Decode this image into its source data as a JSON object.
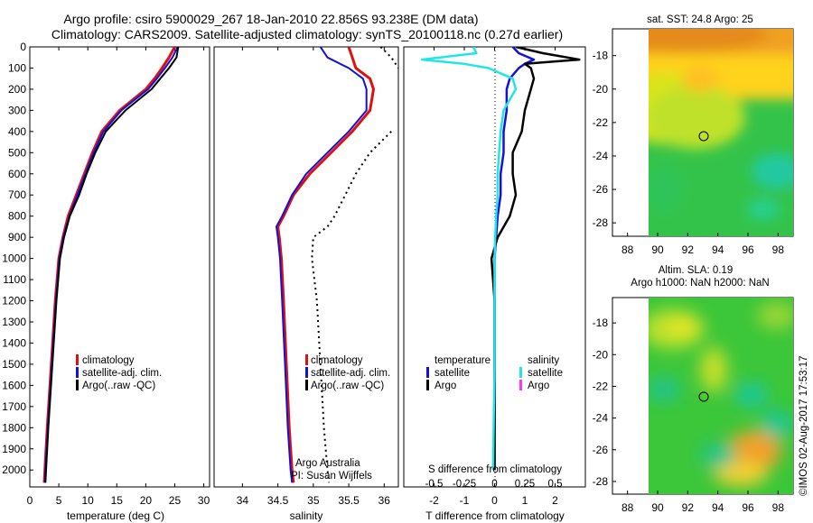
{
  "header": {
    "line1": "Argo profile: csiro 5900029_267 18-Jan-2010 22.856S 93.238E (DM data)",
    "line2": "Climatology: CARS2009. Satellite-adjusted climatology: synTS_20100118.nc (0.27d earlier)"
  },
  "credit": "Argo Australia",
  "pi": "PI: Susan Wijffels",
  "watermark": "©IMOS 02-Aug-2017 17:53:17",
  "colors": {
    "climatology": "#e01010",
    "satellite": "#1010e0",
    "argo": "#000000",
    "satellite_salinity": "#22e5e5",
    "argo_salinity": "#ff33ff",
    "raw": "#000000"
  },
  "legend_tp": [
    "climatology",
    "satellite-adj. clim.",
    "Argo(..raw -QC)"
  ],
  "legend_diff": {
    "temperature_title": "temperature",
    "salinity_title": "salinity",
    "t_sat": "satellite",
    "t_argo": "Argo",
    "s_sat": "satellite",
    "s_argo": "Argo"
  },
  "maps": {
    "sst_title": "sat. SST: 24.8  Argo: 25",
    "sla_title1": "Altim. SLA: 0.19",
    "sla_title2": "Argo h1000: NaN h2000: NaN",
    "lat_ticks": [
      "-18",
      "-20",
      "-22",
      "-24",
      "-26",
      "-28"
    ],
    "lon_ticks": [
      "88",
      "90",
      "92",
      "94",
      "96",
      "98"
    ],
    "marker": {
      "lon": 93.238,
      "lat": -22.856
    }
  },
  "chart_data": [
    {
      "type": "line",
      "panel": "temperature",
      "xlabel": "temperature (deg C)",
      "xlim": [
        0,
        31
      ],
      "ylim": [
        2080,
        0
      ],
      "xticks": [
        "0",
        "5",
        "10",
        "15",
        "20",
        "25",
        "30"
      ],
      "yticks": [
        "0",
        "100",
        "200",
        "300",
        "400",
        "500",
        "600",
        "700",
        "800",
        "900",
        "1000",
        "1100",
        "1200",
        "1300",
        "1400",
        "1500",
        "1600",
        "1700",
        "1800",
        "1900",
        "2000"
      ],
      "depth": [
        0,
        50,
        100,
        150,
        200,
        300,
        400,
        500,
        600,
        700,
        800,
        900,
        1000,
        1200,
        1500,
        1800,
        2000,
        2060
      ],
      "series": [
        {
          "name": "climatology",
          "values": [
            25.0,
            24.0,
            22.8,
            21.5,
            20.0,
            15.5,
            12.4,
            10.8,
            9.4,
            8.0,
            6.6,
            5.7,
            5.0,
            4.4,
            3.7,
            3.0,
            2.6,
            2.5
          ]
        },
        {
          "name": "satellite-adj. clim.",
          "values": [
            25.5,
            24.6,
            23.3,
            21.9,
            20.4,
            15.8,
            12.7,
            11.0,
            9.6,
            8.2,
            6.8,
            5.8,
            5.1,
            4.5,
            3.8,
            3.1,
            2.7,
            2.6
          ]
        },
        {
          "name": "Argo(..raw -QC)",
          "values": [
            25.6,
            25.3,
            24.0,
            22.5,
            21.0,
            16.5,
            13.1,
            11.3,
            9.8,
            8.5,
            6.9,
            5.9,
            5.2,
            4.6,
            3.9,
            3.2,
            2.8,
            2.7
          ]
        }
      ]
    },
    {
      "type": "line",
      "panel": "salinity",
      "xlabel": "salinity",
      "xlim": [
        33.6,
        36.2
      ],
      "ylim": [
        2080,
        0
      ],
      "xticks": [
        "34",
        "34.5",
        "35",
        "35.5",
        "36"
      ],
      "depth": [
        0,
        50,
        100,
        150,
        200,
        300,
        400,
        500,
        600,
        700,
        800,
        850,
        900,
        1000,
        1200,
        1500,
        1800,
        2000,
        2060
      ],
      "series": [
        {
          "name": "climatology",
          "values": [
            35.5,
            35.55,
            35.6,
            35.8,
            35.85,
            35.8,
            35.55,
            35.25,
            34.95,
            34.72,
            34.58,
            34.5,
            34.52,
            34.55,
            34.58,
            34.62,
            34.66,
            34.7,
            34.72
          ]
        },
        {
          "name": "satellite-adj. clim.",
          "values": [
            35.1,
            35.2,
            35.5,
            35.7,
            35.75,
            35.75,
            35.5,
            35.2,
            34.9,
            34.7,
            34.56,
            34.48,
            34.5,
            34.53,
            34.56,
            34.6,
            34.64,
            34.68,
            34.7
          ]
        },
        {
          "name": "Argo(..raw -QC)",
          "values": [
            35.95,
            36.1,
            36.2,
            null,
            null,
            null,
            36.1,
            35.8,
            35.6,
            35.45,
            35.3,
            35.2,
            35.0,
            34.98,
            35.05,
            35.1,
            35.15,
            35.2,
            35.22
          ]
        }
      ]
    },
    {
      "type": "line",
      "panel": "differences",
      "xlabel": "T difference from climatology",
      "x2label": "S difference from climatology",
      "xlim": [
        -3,
        3
      ],
      "ylim": [
        2080,
        0
      ],
      "xticks": [
        "-2",
        "-1",
        "0",
        "1",
        "2"
      ],
      "x2ticks": [
        "-0.5",
        "-0.25",
        "0",
        "0.25",
        "0.5"
      ],
      "depth": [
        0,
        30,
        60,
        80,
        100,
        150,
        200,
        300,
        400,
        500,
        600,
        700,
        800,
        900,
        1000,
        1200,
        1500,
        2000
      ],
      "series": [
        {
          "name": "temperature satellite",
          "values": [
            0.6,
            0.8,
            1.3,
            1.0,
            0.8,
            0.5,
            0.4,
            0.4,
            0.3,
            0.3,
            0.2,
            0.2,
            0.1,
            0.05,
            0.0,
            0.0,
            0.0,
            0.0
          ]
        },
        {
          "name": "temperature Argo",
          "values": [
            0.7,
            1.6,
            2.8,
            1.0,
            1.2,
            1.3,
            1.2,
            1.0,
            0.9,
            0.6,
            0.6,
            0.7,
            0.5,
            0.1,
            -0.1,
            0.0,
            0.0,
            0.0
          ]
        },
        {
          "name": "salinity satellite",
          "values": [
            -0.7,
            -0.6,
            -2.4,
            -1.0,
            -0.2,
            0.6,
            0.7,
            0.3,
            0.2,
            0.15,
            0.1,
            0.1,
            0.05,
            0.02,
            0.0,
            0.0,
            0.0,
            -0.05
          ]
        }
      ]
    }
  ]
}
